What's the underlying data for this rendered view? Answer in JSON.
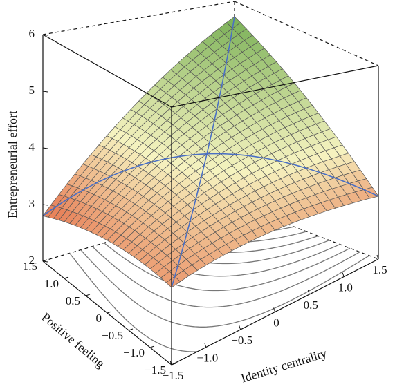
{
  "chart_data": {
    "type": "surface3d",
    "xlabel": "Identity centrality",
    "ylabel": "Positive feeling",
    "zlabel": "Entrepreneurial effort",
    "x_range": [
      -1.5,
      1.5
    ],
    "y_range": [
      -1.5,
      1.5
    ],
    "z_range": [
      2,
      6
    ],
    "x_ticks": [
      {
        "value": -1.5,
        "label": "−1.5"
      },
      {
        "value": -1.0,
        "label": "−1.0"
      },
      {
        "value": -0.5,
        "label": "−0.5"
      },
      {
        "value": 0,
        "label": "0"
      },
      {
        "value": 0.5,
        "label": "0.5"
      },
      {
        "value": 1.0,
        "label": "1.0"
      },
      {
        "value": 1.5,
        "label": "1.5"
      }
    ],
    "y_ticks": [
      {
        "value": -1.5,
        "label": "−1.5"
      },
      {
        "value": -1.0,
        "label": "−1.0"
      },
      {
        "value": -0.5,
        "label": "−0.5"
      },
      {
        "value": 0,
        "label": "0"
      },
      {
        "value": 0.5,
        "label": "0.5"
      },
      {
        "value": 1.0,
        "label": "1.0"
      },
      {
        "value": 1.5,
        "label": "1.5"
      }
    ],
    "z_ticks": [
      {
        "value": 2,
        "label": "2"
      },
      {
        "value": 3,
        "label": "3"
      },
      {
        "value": 4,
        "label": "4"
      },
      {
        "value": 5,
        "label": "5"
      },
      {
        "value": 6,
        "label": "6"
      }
    ],
    "surface_corners": [
      {
        "x": -1.5,
        "y": -1.5,
        "z": 3.4
      },
      {
        "x": 1.5,
        "y": -1.5,
        "z": 3.5
      },
      {
        "x": -1.5,
        "y": 1.5,
        "z": 3.0
      },
      {
        "x": 1.5,
        "y": 1.5,
        "z": 5.9
      }
    ],
    "surface_center_z": 4.15,
    "grid_divisions": 24,
    "highlight_lines": [
      "x = y",
      "x = −y"
    ],
    "contour_levels": [
      3.3,
      3.5,
      3.7,
      3.9,
      4.1,
      4.3,
      4.5,
      4.7,
      4.9,
      5.1,
      5.3,
      5.5,
      5.7
    ],
    "colors": {
      "low": "#e8845c",
      "mid": "#f6f3c0",
      "high": "#6aa84a",
      "mesh": "#555555",
      "highlight_line": "#4a6fc4",
      "contour": "#777777"
    }
  }
}
